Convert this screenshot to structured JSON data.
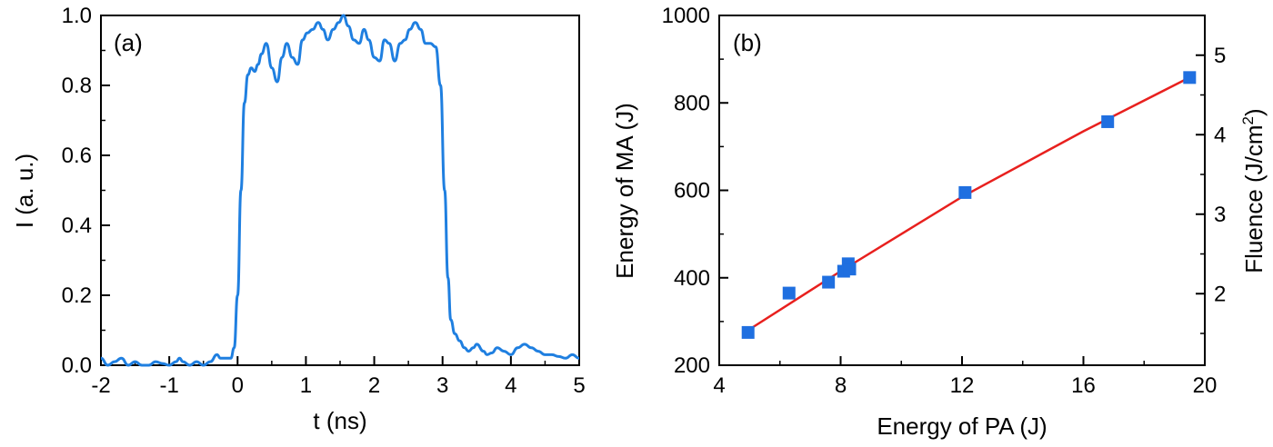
{
  "colors": {
    "curve": "#1f7fe0",
    "marker": "#1f6fe0",
    "fit": "#e8201e",
    "axis": "#000000"
  },
  "chart_data": [
    {
      "type": "line",
      "panel_label": "(a)",
      "title": "",
      "xlabel": "t (ns)",
      "ylabel": "I (a. u.)",
      "xlim": [
        -2,
        5
      ],
      "ylim": [
        0,
        1.0
      ],
      "x_ticks": [
        "-2",
        "-1",
        "0",
        "1",
        "2",
        "3",
        "4",
        "5"
      ],
      "y_ticks": [
        "0.0",
        "0.2",
        "0.4",
        "0.6",
        "0.8",
        "1.0"
      ],
      "series": [
        {
          "x": [
            -2.0,
            -1.9,
            -1.8,
            -1.7,
            -1.6,
            -1.5,
            -1.4,
            -1.3,
            -1.2,
            -1.1,
            -1.0,
            -0.9,
            -0.85,
            -0.8,
            -0.7,
            -0.6,
            -0.5,
            -0.4,
            -0.3,
            -0.25,
            -0.2,
            -0.1,
            -0.05,
            0.0,
            0.05,
            0.1,
            0.15,
            0.2,
            0.25,
            0.3,
            0.35,
            0.42,
            0.5,
            0.58,
            0.65,
            0.72,
            0.8,
            0.88,
            0.95,
            1.02,
            1.1,
            1.18,
            1.25,
            1.32,
            1.4,
            1.48,
            1.55,
            1.62,
            1.7,
            1.78,
            1.85,
            1.92,
            2.0,
            2.08,
            2.15,
            2.22,
            2.3,
            2.38,
            2.45,
            2.52,
            2.6,
            2.68,
            2.75,
            2.82,
            2.9,
            2.97,
            3.03,
            3.08,
            3.12,
            3.18,
            3.25,
            3.32,
            3.38,
            3.45,
            3.5,
            3.6,
            3.65,
            3.72,
            3.8,
            3.9,
            4.0,
            4.1,
            4.2,
            4.3,
            4.4,
            4.5,
            4.6,
            4.7,
            4.8,
            4.9,
            5.0
          ],
          "y": [
            0.02,
            0.0,
            0.01,
            0.02,
            0.0,
            0.01,
            0.0,
            0.0,
            0.01,
            0.005,
            0.0,
            0.01,
            0.02,
            0.01,
            0.0,
            0.01,
            0.0,
            0.01,
            0.03,
            0.02,
            0.02,
            0.02,
            0.05,
            0.2,
            0.5,
            0.75,
            0.83,
            0.85,
            0.84,
            0.86,
            0.89,
            0.92,
            0.85,
            0.81,
            0.88,
            0.92,
            0.88,
            0.86,
            0.93,
            0.95,
            0.96,
            0.98,
            0.96,
            0.93,
            0.96,
            0.98,
            1.0,
            0.97,
            0.93,
            0.92,
            0.96,
            0.93,
            0.88,
            0.87,
            0.93,
            0.92,
            0.87,
            0.92,
            0.93,
            0.96,
            0.98,
            0.96,
            0.92,
            0.92,
            0.91,
            0.8,
            0.5,
            0.25,
            0.13,
            0.09,
            0.07,
            0.05,
            0.04,
            0.05,
            0.06,
            0.04,
            0.03,
            0.035,
            0.05,
            0.04,
            0.03,
            0.05,
            0.06,
            0.05,
            0.04,
            0.03,
            0.03,
            0.025,
            0.02,
            0.03,
            0.02
          ]
        }
      ]
    },
    {
      "type": "scatter",
      "panel_label": "(b)",
      "title": "",
      "xlabel": "Energy of PA (J)",
      "ylabel": "Energy of MA (J)",
      "ylabel_right": "Fluence (J/cm",
      "ylabel_right_sup": "2",
      "ylabel_right_suffix": ")",
      "xlim": [
        4,
        20
      ],
      "ylim": [
        200,
        1000
      ],
      "y2lim": [
        1.1,
        5.5
      ],
      "x_ticks": [
        "4",
        "8",
        "12",
        "16",
        "20"
      ],
      "y_ticks": [
        "200",
        "400",
        "600",
        "800",
        "1000"
      ],
      "y2_ticks": [
        "2",
        "3",
        "4",
        "5"
      ],
      "series": [
        {
          "x": [
            4.95,
            6.3,
            7.6,
            8.1,
            8.25,
            8.3,
            12.1,
            16.8,
            19.5
          ],
          "y": [
            275,
            365,
            390,
            415,
            432,
            420,
            595,
            757,
            858
          ]
        }
      ],
      "fit_line": {
        "x": [
          4.95,
          8.0,
          12.0,
          16.0,
          19.5
        ],
        "y": [
          280,
          415,
          585,
          735,
          858
        ]
      }
    }
  ]
}
